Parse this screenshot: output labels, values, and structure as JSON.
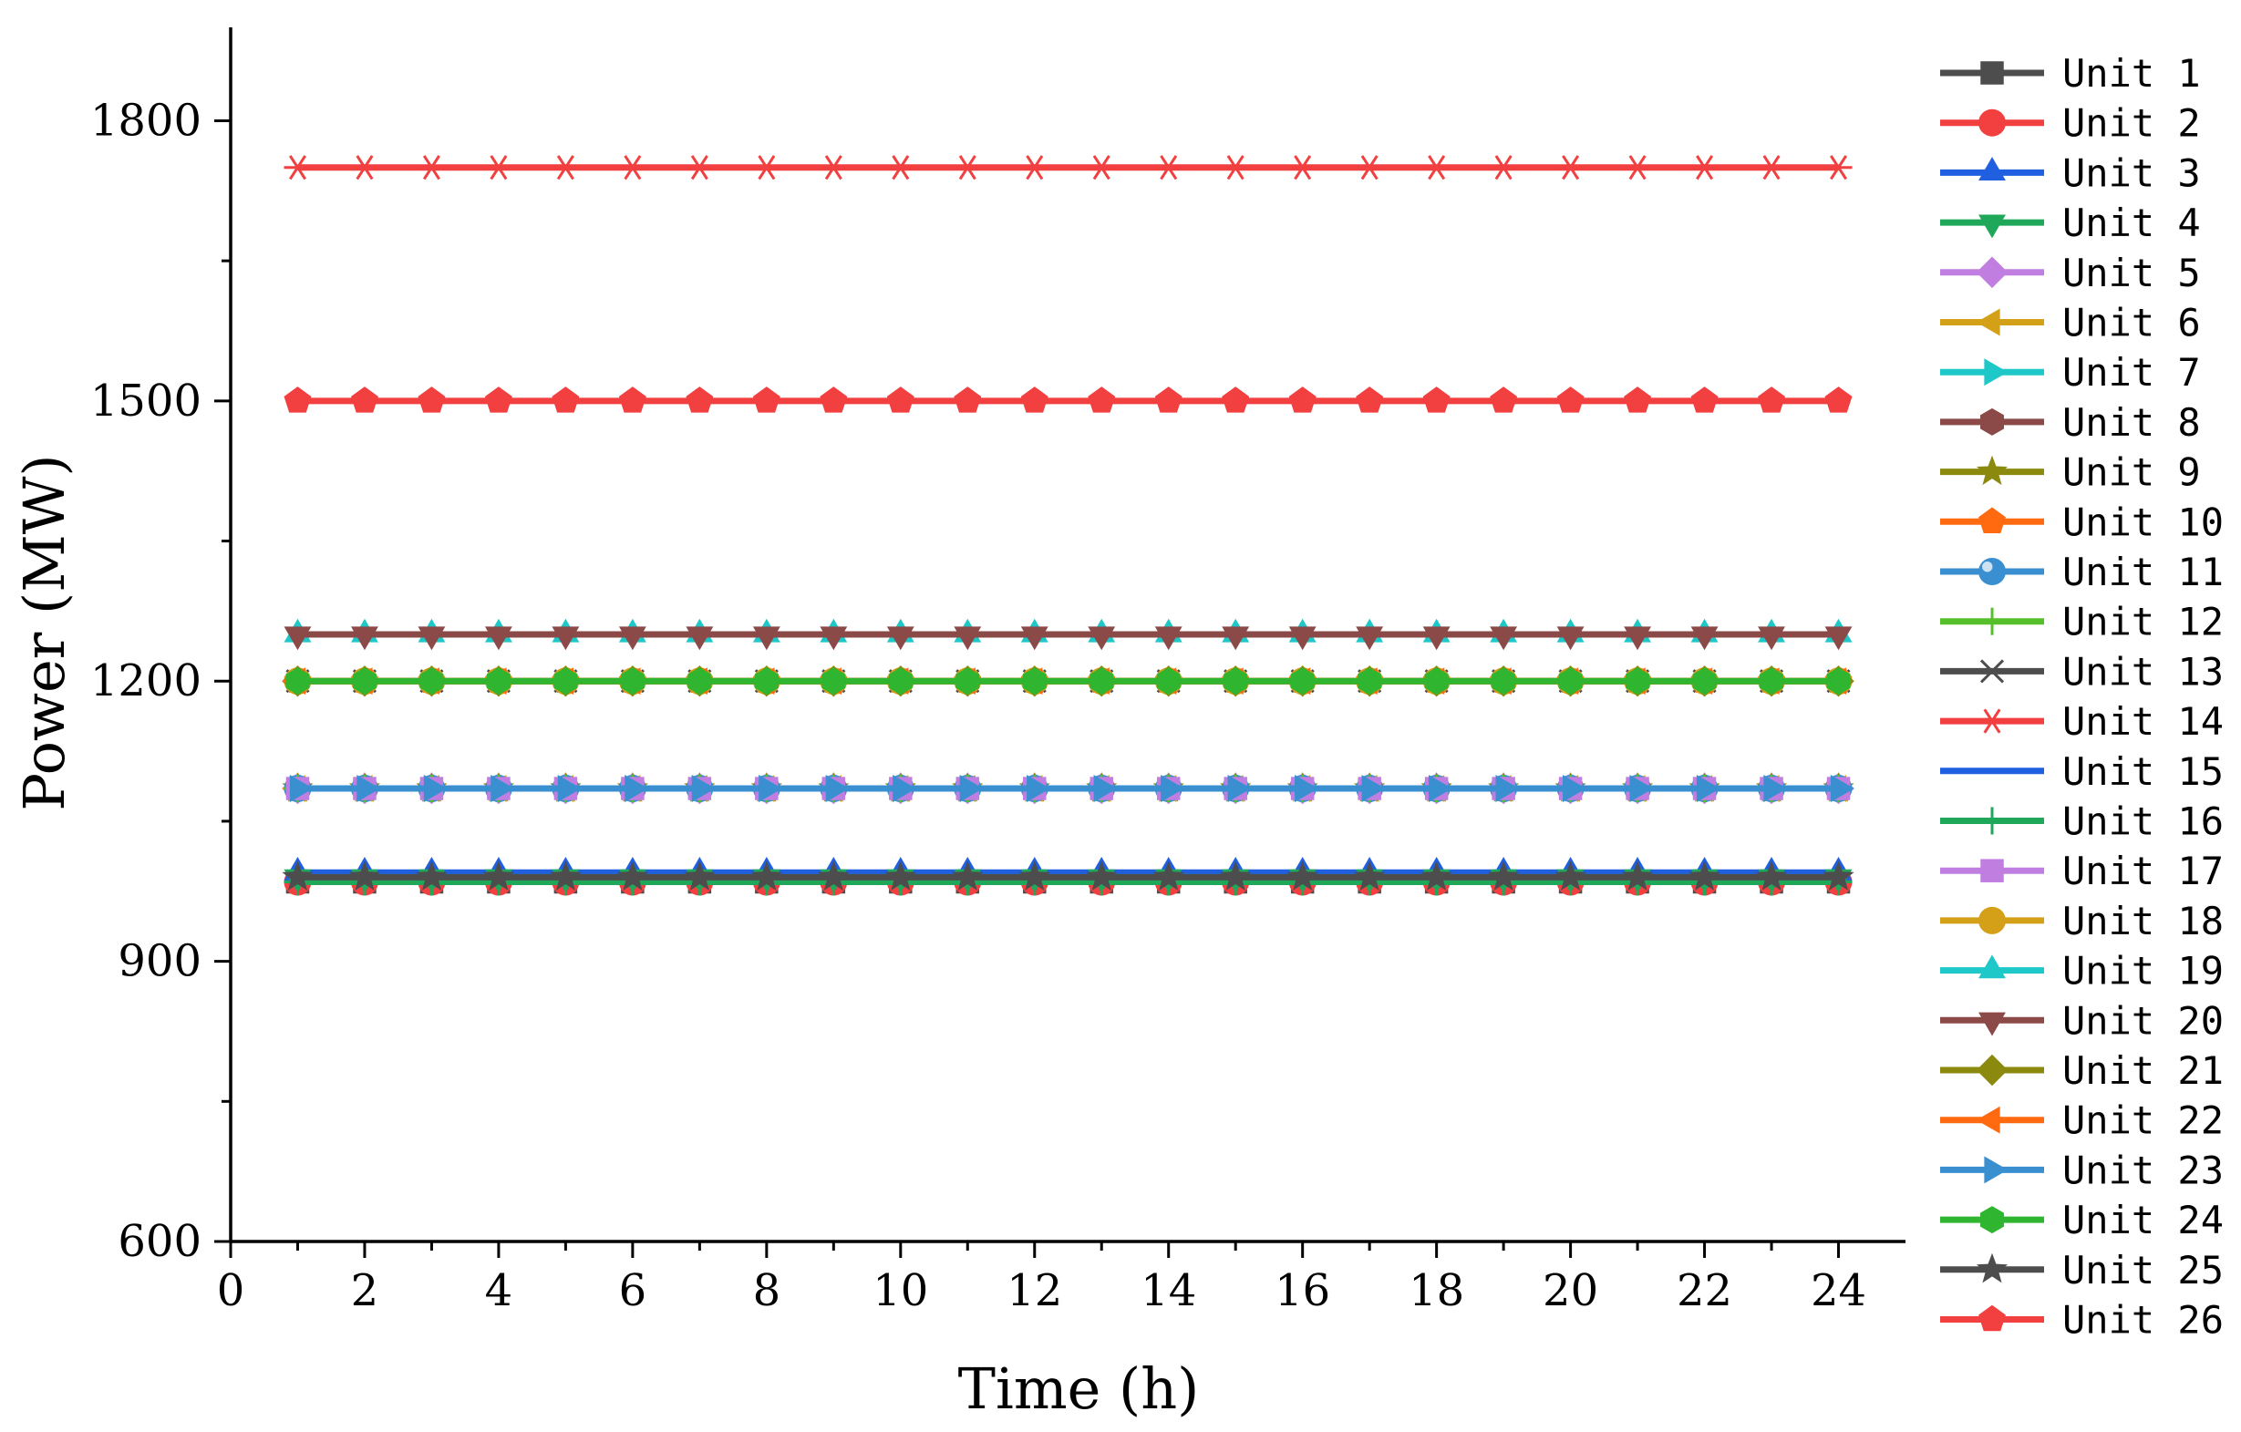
{
  "chart_data": {
    "type": "line",
    "xlabel": "Time (h)",
    "ylabel": "Power (MW)",
    "xlim": [
      0,
      25
    ],
    "ylim": [
      600,
      1900
    ],
    "xticks": [
      0,
      2,
      4,
      6,
      8,
      10,
      12,
      14,
      16,
      18,
      20,
      22,
      24
    ],
    "yticks": [
      600,
      900,
      1200,
      1500,
      1800
    ],
    "x": [
      1,
      2,
      3,
      4,
      5,
      6,
      7,
      8,
      9,
      10,
      11,
      12,
      13,
      14,
      15,
      16,
      17,
      18,
      19,
      20,
      21,
      22,
      23,
      24
    ],
    "grid": false,
    "legend_position": "right",
    "series": [
      {
        "name": "Unit 1",
        "color": "#4d4d4d",
        "marker": "square",
        "value": 985
      },
      {
        "name": "Unit 2",
        "color": "#f23f3f",
        "marker": "circle",
        "value": 985
      },
      {
        "name": "Unit 3",
        "color": "#1f5fe0",
        "marker": "triangle-up",
        "value": 995
      },
      {
        "name": "Unit 4",
        "color": "#1fa75a",
        "marker": "triangle-down",
        "value": 990
      },
      {
        "name": "Unit 5",
        "color": "#c07fe0",
        "marker": "diamond",
        "value": 1085
      },
      {
        "name": "Unit 6",
        "color": "#d4a017",
        "marker": "triangle-left",
        "value": 1085
      },
      {
        "name": "Unit 7",
        "color": "#1ec8c8",
        "marker": "triangle-right",
        "value": 1085
      },
      {
        "name": "Unit 8",
        "color": "#8b4a48",
        "marker": "hexagon",
        "value": 1085
      },
      {
        "name": "Unit 9",
        "color": "#8c8a0e",
        "marker": "star",
        "value": 1085
      },
      {
        "name": "Unit 10",
        "color": "#ff6a10",
        "marker": "pentagon",
        "value": 1200
      },
      {
        "name": "Unit 11",
        "color": "#3a8fd0",
        "marker": "sphere",
        "value": 1085
      },
      {
        "name": "Unit 12",
        "color": "#55c02a",
        "marker": "plus",
        "value": 1085
      },
      {
        "name": "Unit 13",
        "color": "#4d4d4d",
        "marker": "cross",
        "value": 1200
      },
      {
        "name": "Unit 14",
        "color": "#f23f3f",
        "marker": "asterisk",
        "value": 1750
      },
      {
        "name": "Unit 15",
        "color": "#1f5fe0",
        "marker": "none",
        "value": 1085
      },
      {
        "name": "Unit 16",
        "color": "#1fa75a",
        "marker": "plus",
        "value": 985
      },
      {
        "name": "Unit 17",
        "color": "#c07fe0",
        "marker": "square",
        "value": 1085
      },
      {
        "name": "Unit 18",
        "color": "#d4a017",
        "marker": "circle",
        "value": 1200
      },
      {
        "name": "Unit 19",
        "color": "#1ec8c8",
        "marker": "triangle-up",
        "value": 1250
      },
      {
        "name": "Unit 20",
        "color": "#8b4a48",
        "marker": "triangle-down",
        "value": 1250
      },
      {
        "name": "Unit 21",
        "color": "#8c8a0e",
        "marker": "diamond",
        "value": 1200
      },
      {
        "name": "Unit 22",
        "color": "#ff6a10",
        "marker": "triangle-left",
        "value": 1200
      },
      {
        "name": "Unit 23",
        "color": "#3a8fd0",
        "marker": "triangle-right",
        "value": 1085
      },
      {
        "name": "Unit 24",
        "color": "#2fb52f",
        "marker": "hexagon",
        "value": 1200
      },
      {
        "name": "Unit 25",
        "color": "#4d4d4d",
        "marker": "star",
        "value": 990
      },
      {
        "name": "Unit 26",
        "color": "#f23f3f",
        "marker": "pentagon",
        "value": 1500
      }
    ]
  }
}
